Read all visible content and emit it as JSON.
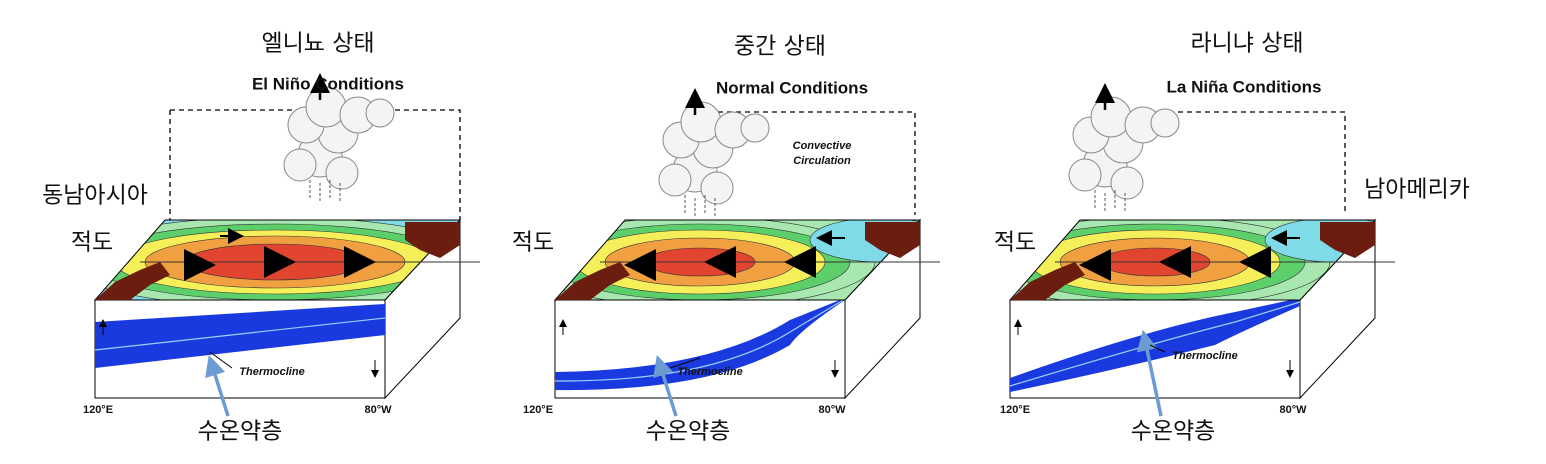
{
  "panels": [
    {
      "title_ko": "엘니뇨 상태",
      "title_en": "El Niño Conditions",
      "region": "동남아시아",
      "equator": "적도",
      "thermocline": "Thermocline",
      "lon_west": "120°E",
      "lon_east": "80°W",
      "thermocline_ko": "수온약층"
    },
    {
      "title_ko": "중간 상태",
      "title_en": "Normal Conditions",
      "circulation": [
        "Convective",
        "Circulation"
      ],
      "equator": "적도",
      "thermocline": "Thermocline",
      "lon_west": "120°E",
      "lon_east": "80°W",
      "thermocline_ko": "수온약층"
    },
    {
      "title_ko": "라니냐 상태",
      "title_en": "La Niña Conditions",
      "region": "남아메리카",
      "equator": "적도",
      "thermocline": "Thermocline",
      "lon_west": "120°E",
      "lon_east": "80°W",
      "thermocline_ko": "수온약층"
    }
  ]
}
